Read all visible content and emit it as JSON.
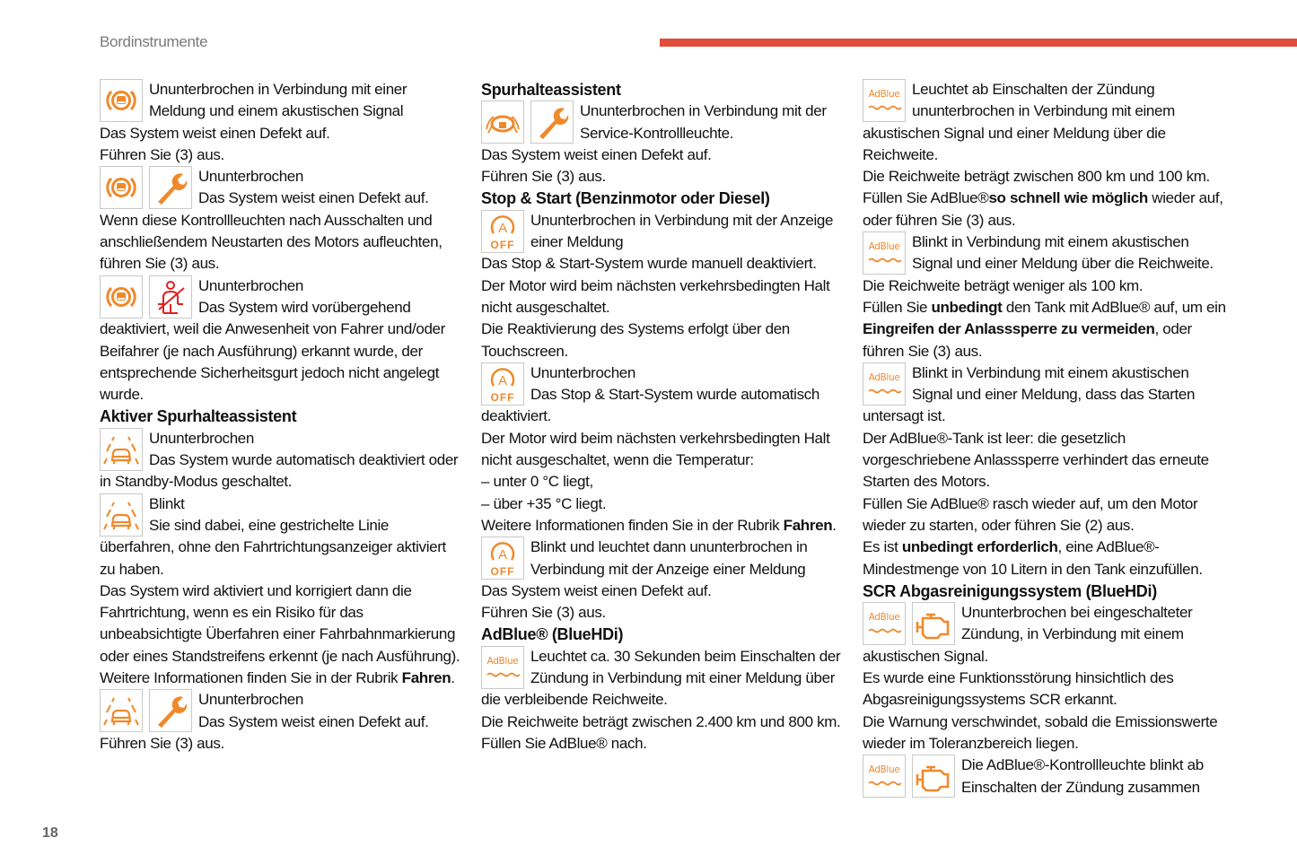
{
  "header": {
    "section": "Bordinstrumente",
    "page_number": "18"
  },
  "colors": {
    "accent_bar": "#e04b3c",
    "icon_orange": "#f0892a",
    "icon_red": "#e02020"
  },
  "columns": [
    {
      "blocks": [
        {
          "icons": [
            "driver-assist-icon"
          ],
          "paras": [
            [
              "Ununterbrochen in Verbindung mit einer Meldung und einem akustischen Signal"
            ],
            [
              "Das System weist einen Defekt auf."
            ],
            [
              "Führen Sie (3) aus."
            ]
          ]
        },
        {
          "icons": [
            "driver-assist-icon",
            "wrench-icon"
          ],
          "paras": [
            [
              "Ununterbrochen"
            ],
            [
              "Das System weist einen Defekt auf."
            ],
            [
              "Wenn diese Kontrollleuchten nach Ausschalten und anschließendem Neustarten des Motors aufleuchten, führen Sie (3) aus."
            ]
          ]
        },
        {
          "icons": [
            "driver-assist-icon",
            "seatbelt-icon"
          ],
          "paras": [
            [
              "Ununterbrochen"
            ],
            [
              "Das System wird vorübergehend deaktiviert, weil die Anwesenheit von Fahrer und/oder Beifahrer (je nach Ausführung) erkannt wurde, der entsprechende Sicherheitsgurt jedoch nicht angelegt wurde."
            ]
          ]
        },
        {
          "heading": "Aktiver Spurhalteassistent"
        },
        {
          "icons": [
            "lane-assist-icon"
          ],
          "paras": [
            [
              "Ununterbrochen"
            ],
            [
              "Das System wurde automatisch deaktiviert oder in Standby-Modus geschaltet."
            ]
          ]
        },
        {
          "icons": [
            "lane-assist-icon"
          ],
          "paras": [
            [
              "Blinkt"
            ],
            [
              "Sie sind dabei, eine gestrichelte Linie überfahren, ohne den Fahrtrichtungsanzeiger aktiviert zu haben."
            ],
            [
              "Das System wird aktiviert und korrigiert dann die Fahrtrichtung, wenn es ein Risiko für das unbeabsichtigte Überfahren einer Fahrbahnmarkierung oder eines Standstreifens erkennt (je nach Ausführung)."
            ],
            [
              "Weitere Informationen finden Sie in der Rubrik ",
              {
                "b": "Fahren"
              },
              "."
            ]
          ]
        },
        {
          "icons": [
            "lane-assist-icon",
            "wrench-icon"
          ],
          "paras": [
            [
              "Ununterbrochen"
            ],
            [
              "Das System weist einen Defekt auf."
            ],
            [
              "Führen Sie (3) aus."
            ]
          ]
        }
      ]
    },
    {
      "blocks": [
        {
          "heading": "Spurhalteassistent"
        },
        {
          "icons": [
            "steering-hands-icon",
            "wrench-icon"
          ],
          "paras": [
            [
              "Ununterbrochen in Verbindung mit der Service-Kontrollleuchte."
            ],
            [
              "Das System weist einen Defekt auf."
            ],
            [
              "Führen Sie (3) aus."
            ]
          ]
        },
        {
          "heading": "Stop & Start (Benzinmotor oder Diesel)"
        },
        {
          "icons": [
            "stop-start-off-icon"
          ],
          "paras": [
            [
              "Ununterbrochen in Verbindung mit der Anzeige einer Meldung"
            ],
            [
              "Das Stop & Start-System wurde manuell deaktiviert."
            ],
            [
              "Der Motor wird beim nächsten verkehrsbedingten Halt nicht ausgeschaltet."
            ],
            [
              "Die Reaktivierung des Systems erfolgt über den Touchscreen."
            ]
          ]
        },
        {
          "icons": [
            "stop-start-off-icon"
          ],
          "paras": [
            [
              "Ununterbrochen"
            ],
            [
              "Das Stop & Start-System wurde automatisch deaktiviert."
            ],
            [
              "Der Motor wird beim nächsten verkehrsbedingten Halt nicht ausgeschaltet, wenn die Temperatur:"
            ],
            [
              "–  unter 0 °C liegt,"
            ],
            [
              "–  über +35 °C liegt."
            ],
            [
              "Weitere Informationen finden Sie in der Rubrik ",
              {
                "b": "Fahren"
              },
              "."
            ]
          ]
        },
        {
          "icons": [
            "stop-start-off-icon"
          ],
          "paras": [
            [
              "Blinkt und leuchtet dann ununterbrochen in Verbindung mit der Anzeige einer Meldung"
            ],
            [
              "Das System weist einen Defekt auf."
            ],
            [
              "Führen Sie (3) aus."
            ]
          ]
        },
        {
          "heading": "AdBlue® (BlueHDi)"
        },
        {
          "icons": [
            "adblue-icon"
          ],
          "paras": [
            [
              "Leuchtet ca. 30 Sekunden beim Einschalten der Zündung in Verbindung mit einer Meldung über die verbleibende Reichweite."
            ],
            [
              "Die Reichweite beträgt zwischen 2.400 km und 800 km."
            ],
            [
              "Füllen Sie AdBlue® nach."
            ]
          ]
        }
      ]
    },
    {
      "blocks": [
        {
          "icons": [
            "adblue-icon"
          ],
          "paras": [
            [
              "Leuchtet ab Einschalten der Zündung ununterbrochen in Verbindung mit einem akustischen Signal und einer Meldung über die Reichweite."
            ],
            [
              "Die Reichweite beträgt zwischen 800 km und 100 km."
            ],
            [
              "Füllen Sie AdBlue®",
              {
                "b": "so schnell wie möglich"
              },
              " wieder auf, oder führen Sie (3) aus."
            ]
          ]
        },
        {
          "icons": [
            "adblue-icon"
          ],
          "paras": [
            [
              "Blinkt in Verbindung mit einem akustischen Signal und einer Meldung über die Reichweite."
            ],
            [
              "Die Reichweite beträgt weniger als 100 km."
            ],
            [
              "Füllen Sie ",
              {
                "b": "unbedingt"
              },
              " den Tank mit AdBlue® auf, um ein ",
              {
                "b": "Eingreifen der Anlasssperre zu vermeiden"
              },
              ", oder führen Sie (3) aus."
            ]
          ]
        },
        {
          "icons": [
            "adblue-icon"
          ],
          "paras": [
            [
              "Blinkt in Verbindung mit einem akustischen Signal und einer Meldung, dass das Starten untersagt ist."
            ],
            [
              "Der AdBlue®-Tank ist leer: die gesetzlich vorgeschriebene Anlasssperre verhindert das erneute Starten des Motors."
            ],
            [
              "Füllen Sie AdBlue® rasch wieder auf, um den Motor wieder zu starten, oder führen Sie (2) aus."
            ],
            [
              "Es ist ",
              {
                "b": "unbedingt erforderlich"
              },
              ", eine AdBlue®-Mindestmenge von 10 Litern in den Tank einzufüllen."
            ]
          ]
        },
        {
          "heading": "SCR Abgasreinigungssystem (BlueHDi)"
        },
        {
          "icons": [
            "adblue-icon",
            "engine-icon"
          ],
          "paras": [
            [
              "Ununterbrochen bei eingeschalteter Zündung, in Verbindung mit einem akustischen Signal."
            ],
            [
              "Es wurde eine Funktionsstörung hinsichtlich des Abgasreinigungssystems SCR erkannt."
            ],
            [
              "Die Warnung verschwindet, sobald die Emissionswerte wieder im Toleranzbereich liegen."
            ]
          ]
        },
        {
          "icons": [
            "adblue-icon",
            "engine-icon"
          ],
          "paras": [
            [
              "Die AdBlue®-Kontrollleuchte blinkt ab Einschalten der Zündung zusammen"
            ]
          ]
        }
      ]
    }
  ]
}
